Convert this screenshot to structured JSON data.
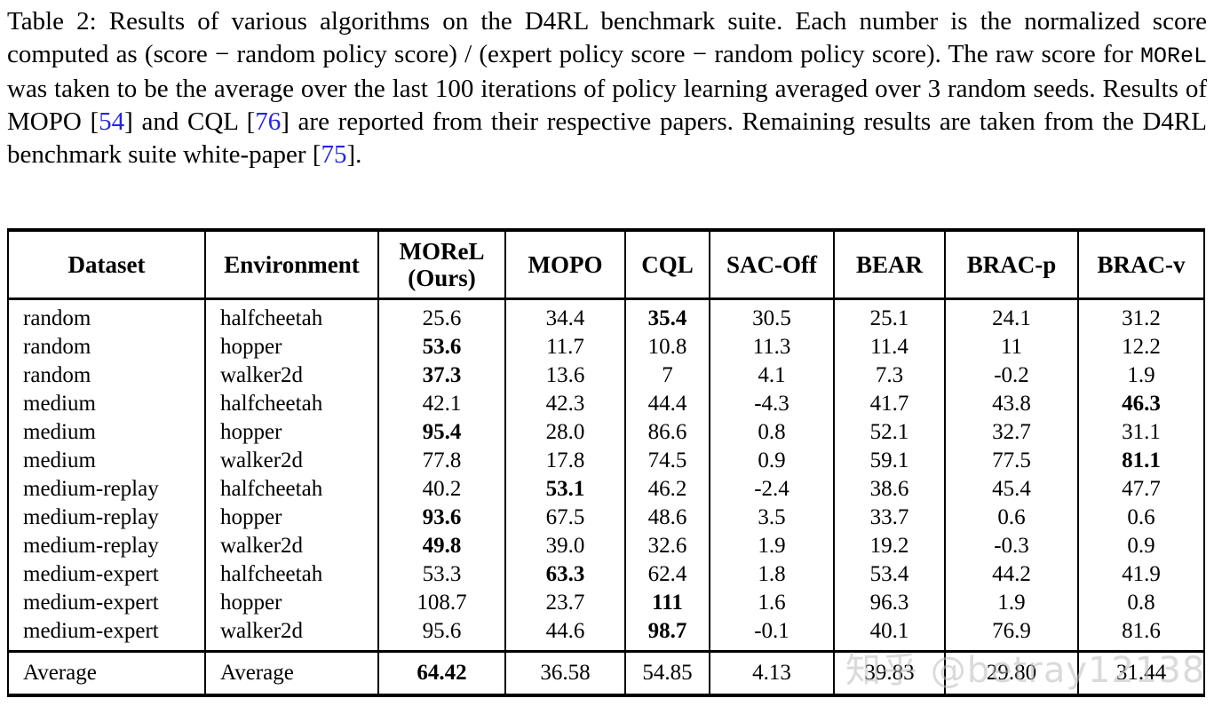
{
  "caption": {
    "segments": [
      {
        "t": "text",
        "c": "Table 2: Results of various algorithms on the D4RL benchmark suite. Each number is the normalized score computed as (score − random policy score) / (expert policy score − random policy score). The raw score for "
      },
      {
        "t": "code",
        "c": "MOReL"
      },
      {
        "t": "text",
        "c": " was taken to be the average over the last 100 iterations of policy learning averaged over 3 random seeds. Results of MOPO ["
      },
      {
        "t": "link",
        "c": "54"
      },
      {
        "t": "text",
        "c": "] and CQL ["
      },
      {
        "t": "link",
        "c": "76"
      },
      {
        "t": "text",
        "c": "] are reported from their respective papers. Remaining results are taken from the D4RL benchmark suite white-paper ["
      },
      {
        "t": "link",
        "c": "75"
      },
      {
        "t": "text",
        "c": "]."
      }
    ]
  },
  "chart_data": {
    "type": "table",
    "title": "Table 2: Results of various algorithms on the D4RL benchmark suite",
    "columns": [
      "Dataset",
      "Environment",
      "MOReL\n(Ours)",
      "MOPO",
      "CQL",
      "SAC-Off",
      "BEAR",
      "BRAC-p",
      "BRAC-v"
    ],
    "rows": [
      {
        "dataset": "random",
        "environment": "halfcheetah",
        "values": [
          "25.6",
          "34.4",
          "35.4",
          "30.5",
          "25.1",
          "24.1",
          "31.2"
        ],
        "bold": [
          2
        ]
      },
      {
        "dataset": "random",
        "environment": "hopper",
        "values": [
          "53.6",
          "11.7",
          "10.8",
          "11.3",
          "11.4",
          "11",
          "12.2"
        ],
        "bold": [
          0
        ]
      },
      {
        "dataset": "random",
        "environment": "walker2d",
        "values": [
          "37.3",
          "13.6",
          "7",
          "4.1",
          "7.3",
          "-0.2",
          "1.9"
        ],
        "bold": [
          0
        ]
      },
      {
        "dataset": "medium",
        "environment": "halfcheetah",
        "values": [
          "42.1",
          "42.3",
          "44.4",
          "-4.3",
          "41.7",
          "43.8",
          "46.3"
        ],
        "bold": [
          6
        ]
      },
      {
        "dataset": "medium",
        "environment": "hopper",
        "values": [
          "95.4",
          "28.0",
          "86.6",
          "0.8",
          "52.1",
          "32.7",
          "31.1"
        ],
        "bold": [
          0
        ]
      },
      {
        "dataset": "medium",
        "environment": "walker2d",
        "values": [
          "77.8",
          "17.8",
          "74.5",
          "0.9",
          "59.1",
          "77.5",
          "81.1"
        ],
        "bold": [
          6
        ]
      },
      {
        "dataset": "medium-replay",
        "environment": "halfcheetah",
        "values": [
          "40.2",
          "53.1",
          "46.2",
          "-2.4",
          "38.6",
          "45.4",
          "47.7"
        ],
        "bold": [
          1
        ]
      },
      {
        "dataset": "medium-replay",
        "environment": "hopper",
        "values": [
          "93.6",
          "67.5",
          "48.6",
          "3.5",
          "33.7",
          "0.6",
          "0.6"
        ],
        "bold": [
          0
        ]
      },
      {
        "dataset": "medium-replay",
        "environment": "walker2d",
        "values": [
          "49.8",
          "39.0",
          "32.6",
          "1.9",
          "19.2",
          "-0.3",
          "0.9"
        ],
        "bold": [
          0
        ]
      },
      {
        "dataset": "medium-expert",
        "environment": "halfcheetah",
        "values": [
          "53.3",
          "63.3",
          "62.4",
          "1.8",
          "53.4",
          "44.2",
          "41.9"
        ],
        "bold": [
          1
        ]
      },
      {
        "dataset": "medium-expert",
        "environment": "hopper",
        "values": [
          "108.7",
          "23.7",
          "111",
          "1.6",
          "96.3",
          "1.9",
          "0.8"
        ],
        "bold": [
          2
        ]
      },
      {
        "dataset": "medium-expert",
        "environment": "walker2d",
        "values": [
          "95.6",
          "44.6",
          "98.7",
          "-0.1",
          "40.1",
          "76.9",
          "81.6"
        ],
        "bold": [
          2
        ]
      }
    ],
    "average_row": {
      "dataset": "Average",
      "environment": "Average",
      "values": [
        "64.42",
        "36.58",
        "54.85",
        "4.13",
        "39.83",
        "29.80",
        "31.44"
      ],
      "bold": [
        0
      ]
    }
  },
  "watermark": {
    "text": "知乎 @betray12138"
  },
  "colors": {
    "link": "#2323E6",
    "text": "#000000",
    "watermark": "#BDBDBD"
  }
}
